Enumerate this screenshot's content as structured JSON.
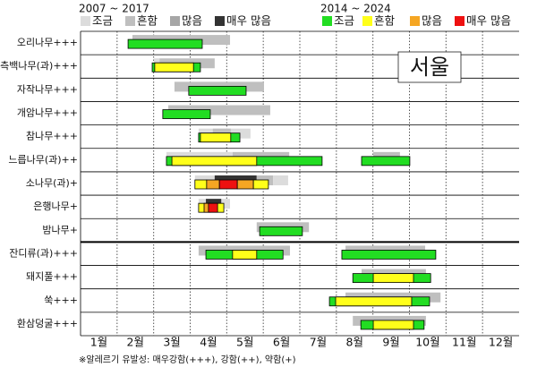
{
  "chart_data": {
    "type": "pollen-calendar",
    "region": "서울",
    "footnote": "※알레르기 유발성: 매우강함(+++), 강함(++), 약함(+)",
    "categories": [
      "1월",
      "2월",
      "3월",
      "4월",
      "5월",
      "6월",
      "7월",
      "8월",
      "9월",
      "10월",
      "11월",
      "12월"
    ],
    "xlim": [
      1,
      13
    ],
    "divider_after": 8,
    "legends": [
      {
        "title": "2007 ~ 2017",
        "levels": [
          {
            "name": "조금",
            "color": "#dcdcdc"
          },
          {
            "name": "흔함",
            "color": "#bfbfbf"
          },
          {
            "name": "많음",
            "color": "#a6a6a6"
          },
          {
            "name": "매우 많음",
            "color": "#333333"
          }
        ]
      },
      {
        "title": "2014 ~ 2024",
        "levels": [
          {
            "name": "조금",
            "color": "#22dd22"
          },
          {
            "name": "흔함",
            "color": "#ffff1a"
          },
          {
            "name": "많음",
            "color": "#f5a623"
          },
          {
            "name": "매우 많음",
            "color": "#ee1111"
          }
        ]
      }
    ],
    "rows": [
      {
        "name": "오리나무+++",
        "old": [
          [
            2.42,
            5.09,
            1
          ]
        ],
        "new": [
          [
            2.3,
            4.33,
            0
          ]
        ]
      },
      {
        "name": "측백나무(과)+++",
        "old": [
          [
            3.01,
            3.16,
            0
          ],
          [
            3.16,
            4.67,
            1
          ]
        ],
        "new": [
          [
            2.96,
            4.28,
            0
          ],
          [
            3.03,
            4.09,
            1
          ]
        ]
      },
      {
        "name": "자작나무+++",
        "old": [
          [
            3.57,
            6.02,
            1
          ]
        ],
        "new": [
          [
            3.96,
            5.53,
            0
          ]
        ]
      },
      {
        "name": "개암나무+++",
        "old": [
          [
            3.4,
            6.19,
            1
          ]
        ],
        "new": [
          [
            3.25,
            4.55,
            0
          ]
        ]
      },
      {
        "name": "참나무+++",
        "old": [
          [
            4.23,
            5.65,
            0
          ],
          [
            4.62,
            5.11,
            1
          ]
        ],
        "new": [
          [
            4.23,
            5.36,
            0
          ],
          [
            4.28,
            5.11,
            1
          ]
        ]
      },
      {
        "name": "느릅나무(과)++",
        "old": [
          [
            3.35,
            5.16,
            0
          ],
          [
            5.16,
            6.71,
            1
          ],
          [
            9.01,
            9.74,
            1
          ]
        ],
        "new": [
          [
            3.35,
            7.61,
            0
          ],
          [
            3.5,
            5.82,
            1
          ],
          [
            8.69,
            10.01,
            0
          ]
        ]
      },
      {
        "name": "소나무(과)+",
        "old": [
          [
            4.13,
            4.67,
            0
          ],
          [
            4.67,
            5.82,
            3
          ],
          [
            5.82,
            6.27,
            1
          ],
          [
            6.27,
            6.68,
            0
          ]
        ],
        "new": [
          [
            4.13,
            4.45,
            1
          ],
          [
            4.45,
            4.8,
            2
          ],
          [
            4.8,
            5.29,
            3
          ],
          [
            5.29,
            5.73,
            2
          ],
          [
            5.73,
            6.14,
            1
          ]
        ]
      },
      {
        "name": "은행나무+",
        "old": [
          [
            4.23,
            5.09,
            0
          ],
          [
            4.43,
            4.85,
            3
          ]
        ],
        "new": [
          [
            4.23,
            4.92,
            1
          ],
          [
            4.38,
            4.55,
            2
          ],
          [
            4.5,
            4.75,
            3
          ]
        ]
      },
      {
        "name": "밤나무+",
        "old": [
          [
            5.82,
            7.25,
            1
          ]
        ],
        "new": [
          [
            5.9,
            7.07,
            0
          ]
        ]
      },
      {
        "name": "잔디류(과)+++",
        "old": [
          [
            4.23,
            6.73,
            1
          ],
          [
            8.25,
            10.43,
            1
          ]
        ],
        "new": [
          [
            4.43,
            6.54,
            0
          ],
          [
            5.16,
            5.82,
            1
          ],
          [
            8.15,
            10.72,
            0
          ]
        ]
      },
      {
        "name": "돼지풀+++",
        "old": [
          [
            8.69,
            10.45,
            1
          ]
        ],
        "new": [
          [
            8.45,
            10.58,
            0
          ],
          [
            9.01,
            10.11,
            1
          ]
        ]
      },
      {
        "name": "쑥+++",
        "old": [
          [
            8.25,
            10.85,
            1
          ]
        ],
        "new": [
          [
            7.81,
            10.55,
            0
          ],
          [
            7.98,
            10.06,
            1
          ]
        ]
      },
      {
        "name": "환삼덩굴+++",
        "old": [
          [
            8.45,
            10.45,
            1
          ]
        ],
        "new": [
          [
            8.67,
            10.4,
            0
          ],
          [
            9.01,
            10.11,
            1
          ]
        ]
      }
    ]
  }
}
